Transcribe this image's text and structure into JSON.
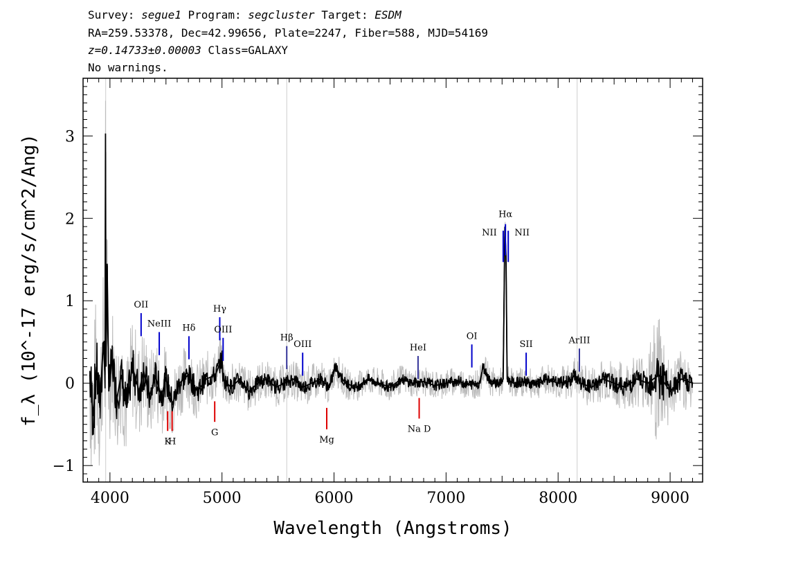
{
  "header": {
    "survey_label": "Survey:",
    "survey": "segue1",
    "program_label": "Program:",
    "program": "segcluster",
    "target_label": "Target:",
    "target": "ESDM",
    "line2": "RA=259.53378, Dec=42.99656, Plate=2247, Fiber=588, MJD=54169",
    "redshift": "z=0.14733±0.00003",
    "class_text": "Class=GALAXY",
    "line4": "No warnings."
  },
  "chart_data": {
    "type": "line",
    "xlabel": "Wavelength (Angstroms)",
    "ylabel": "f_λ (10^-17 erg/s/cm^2/Ang)",
    "xlim": [
      3760,
      9290
    ],
    "ylim": [
      -1.2,
      3.7
    ],
    "x_ticks": [
      "4000",
      "5000",
      "6000",
      "7000",
      "8000",
      "9000"
    ],
    "y_ticks": [
      "-1",
      "0",
      "1",
      "2",
      "3"
    ],
    "colors": {
      "spectrum": "#000000",
      "error_band": "#bbbbbb",
      "emission_marker": "#0000cc",
      "absorption_marker": "#dd0000",
      "reference_line": "#cccccc"
    },
    "series": [
      {
        "role": "flux",
        "x": [
          3820,
          3850,
          3880,
          3910,
          3940,
          3956,
          3960,
          3965,
          3975,
          3990,
          4020,
          4060,
          4100,
          4150,
          4200,
          4260,
          4300,
          4360,
          4400,
          4460,
          4500,
          4560,
          4620,
          4700,
          4780,
          4860,
          4940,
          5000,
          5010,
          5080,
          5160,
          5240,
          5320,
          5400,
          5480,
          5560,
          5640,
          5720,
          5800,
          5880,
          5960,
          6010,
          6100,
          6200,
          6300,
          6400,
          6500,
          6600,
          6700,
          6800,
          6900,
          7000,
          7100,
          7200,
          7300,
          7330,
          7400,
          7480,
          7510,
          7525,
          7535,
          7545,
          7600,
          7700,
          7800,
          7900,
          8000,
          8100,
          8150,
          8200,
          8300,
          8400,
          8500,
          8600,
          8700,
          8800,
          8900,
          9000,
          9100,
          9200
        ],
        "y": [
          0.1,
          -0.4,
          0.2,
          -0.3,
          0.5,
          0.1,
          3.03,
          0.2,
          1.45,
          -0.1,
          0.3,
          -0.2,
          0.1,
          -0.3,
          0.2,
          -0.1,
          0.15,
          -0.2,
          0.1,
          -0.15,
          0.05,
          -0.25,
          0.0,
          0.1,
          -0.1,
          0.05,
          0.1,
          0.3,
          0.05,
          -0.05,
          0.05,
          -0.1,
          0.0,
          0.05,
          -0.05,
          0.0,
          0.05,
          -0.05,
          0.0,
          0.05,
          -0.05,
          0.2,
          0.0,
          -0.05,
          0.05,
          0.0,
          -0.05,
          0.05,
          0.0,
          0.02,
          -0.03,
          0.0,
          0.03,
          -0.02,
          0.0,
          0.2,
          0.02,
          0.0,
          0.05,
          1.9,
          1.55,
          0.05,
          0.0,
          0.02,
          -0.02,
          0.05,
          0.0,
          0.02,
          0.1,
          0.0,
          -0.05,
          0.05,
          0.0,
          -0.05,
          0.05,
          0.0,
          0.1,
          -0.1,
          0.05,
          0.0
        ]
      },
      {
        "role": "error",
        "x": [
          3820,
          3900,
          4000,
          4200,
          4400,
          4600,
          4800,
          5000,
          5400,
          5800,
          6200,
          6600,
          7000,
          7400,
          7800,
          8200,
          8600,
          8800,
          8900,
          9000,
          9200
        ],
        "y": [
          0.9,
          0.8,
          0.6,
          0.55,
          0.45,
          0.35,
          0.3,
          0.25,
          0.2,
          0.2,
          0.15,
          0.15,
          0.15,
          0.15,
          0.15,
          0.2,
          0.25,
          0.3,
          0.8,
          0.3,
          0.3
        ]
      }
    ],
    "reference_lines_x": [
      3962,
      5578,
      8170
    ],
    "emission_lines": [
      {
        "label": "OII",
        "wavelength": 4278
      },
      {
        "label": "NeIII",
        "wavelength": 4440
      },
      {
        "label": "Hδ",
        "wavelength": 4705
      },
      {
        "label": "Hγ",
        "wavelength": 4980
      },
      {
        "label": "OIII",
        "wavelength": 5010
      },
      {
        "label": "Hβ",
        "wavelength": 5578
      },
      {
        "label": "OIII",
        "wavelength": 5720
      },
      {
        "label": "HeI",
        "wavelength": 6750
      },
      {
        "label": "OI",
        "wavelength": 7230
      },
      {
        "label": "NII",
        "wavelength": 7510
      },
      {
        "label": "Hα",
        "wavelength": 7530
      },
      {
        "label": "NII",
        "wavelength": 7555
      },
      {
        "label": "SII",
        "wavelength": 7715
      },
      {
        "label": "ArIII",
        "wavelength": 8190
      }
    ],
    "absorption_lines": [
      {
        "label": "K",
        "wavelength": 4515
      },
      {
        "label": "H",
        "wavelength": 4555
      },
      {
        "label": "G",
        "wavelength": 4935
      },
      {
        "label": "Mg",
        "wavelength": 5935
      },
      {
        "label": "Na D",
        "wavelength": 6760
      }
    ]
  }
}
